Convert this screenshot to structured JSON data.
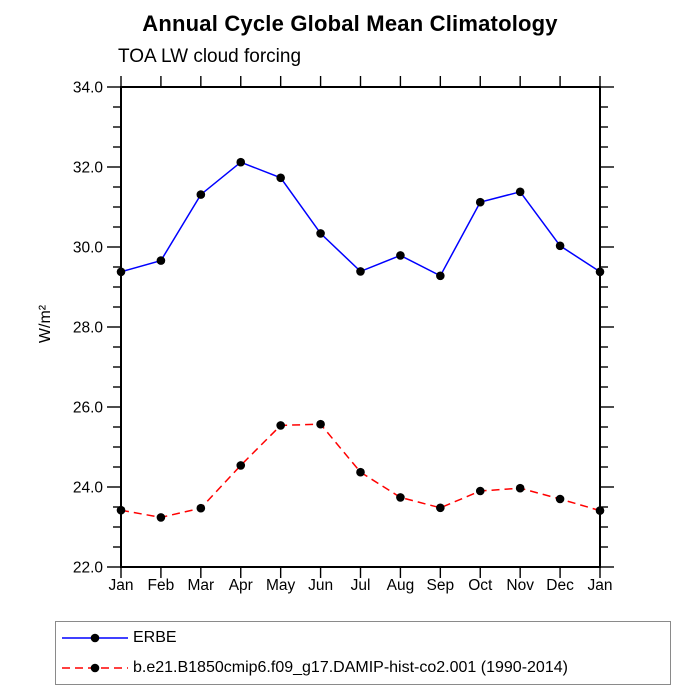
{
  "chart_data": {
    "type": "line",
    "title": "Annual Cycle Global Mean Climatology",
    "subtitle": "TOA LW cloud forcing",
    "ylabel": "W/m²",
    "xlabel": "",
    "categories": [
      "Jan",
      "Feb",
      "Mar",
      "Apr",
      "May",
      "Jun",
      "Jul",
      "Aug",
      "Sep",
      "Oct",
      "Nov",
      "Dec",
      "Jan"
    ],
    "ylim": [
      22.0,
      34.0
    ],
    "ytick_interval_major": 2.0,
    "ytick_interval_minor": 0.5,
    "ytick_labels": [
      "34.0",
      "32.0",
      "30.0",
      "28.0",
      "26.0",
      "24.0",
      "22.0"
    ],
    "grid": false,
    "legend_position": "bottom-left",
    "axis_color": "#000000",
    "series": [
      {
        "name": "ERBE",
        "color": "#0000ff",
        "style": "solid",
        "marker": "filled-circle",
        "marker_color": "#000000",
        "values": [
          29.38,
          29.66,
          31.31,
          32.12,
          31.73,
          30.34,
          29.39,
          29.79,
          29.28,
          31.12,
          31.38,
          30.03,
          29.38
        ]
      },
      {
        "name": "b.e21.B1850cmip6.f09_g17.DAMIP-hist-co2.001 (1990-2014)",
        "color": "#ff0000",
        "style": "dashed",
        "marker": "filled-circle",
        "marker_color": "#000000",
        "values": [
          23.42,
          23.24,
          23.47,
          24.54,
          25.54,
          25.57,
          24.37,
          23.74,
          23.48,
          23.9,
          23.97,
          23.7,
          23.41
        ]
      }
    ]
  }
}
